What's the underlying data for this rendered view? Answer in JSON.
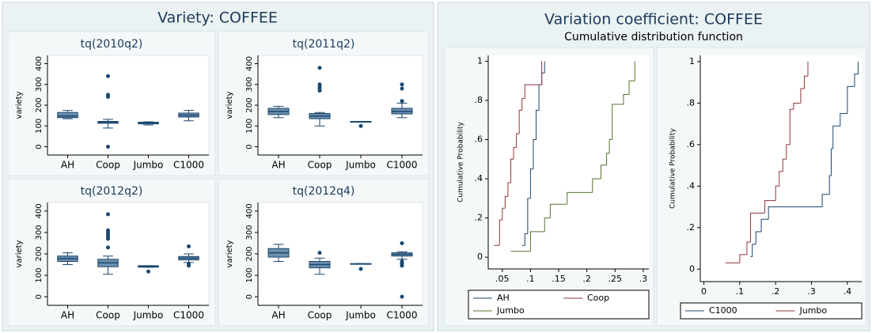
{
  "panels": [
    {
      "title": "Variety: COFFEE"
    },
    {
      "title": "Variation coefficient: COFFEE",
      "subtitle": "Cumulative distribution function"
    }
  ],
  "chart_data": [
    {
      "type": "box",
      "title": "tq(2010q2)",
      "y_label": "variety",
      "categories": [
        "AH",
        "Coop",
        "Jumbo",
        "C1000"
      ],
      "color": "#1a476f",
      "box_color": "#6d8fae",
      "ylim": [
        -40,
        440
      ],
      "yticks": [
        0,
        100,
        200,
        300,
        400
      ],
      "boxes": [
        {
          "whisker_low": 135,
          "q1": 140,
          "median": 148,
          "q3": 165,
          "whisker_high": 175,
          "outliers": []
        },
        {
          "whisker_low": 90,
          "q1": 113,
          "median": 118,
          "q3": 122,
          "whisker_high": 132,
          "outliers": [
            340,
            250,
            240,
            0
          ]
        },
        {
          "whisker_low": 105,
          "q1": 110,
          "median": 115,
          "q3": 118,
          "whisker_high": 120,
          "outliers": []
        },
        {
          "whisker_low": 125,
          "q1": 143,
          "median": 152,
          "q3": 162,
          "whisker_high": 175,
          "outliers": []
        }
      ]
    },
    {
      "type": "box",
      "title": "tq(2011q2)",
      "y_label": "variety",
      "categories": [
        "AH",
        "Coop",
        "Jumbo",
        "C1000"
      ],
      "color": "#1a476f",
      "box_color": "#6d8fae",
      "ylim": [
        -40,
        440
      ],
      "yticks": [
        0,
        100,
        200,
        300,
        400
      ],
      "boxes": [
        {
          "whisker_low": 140,
          "q1": 155,
          "median": 170,
          "q3": 185,
          "whisker_high": 195,
          "outliers": []
        },
        {
          "whisker_low": 100,
          "q1": 135,
          "median": 148,
          "q3": 160,
          "whisker_high": 165,
          "outliers": [
            380,
            300,
            290,
            280,
            270
          ]
        },
        {
          "whisker_low": 120,
          "q1": 120,
          "median": 121,
          "q3": 122,
          "whisker_high": 122,
          "outliers": [
            100
          ]
        },
        {
          "whisker_low": 140,
          "q1": 158,
          "median": 170,
          "q3": 185,
          "whisker_high": 210,
          "outliers": [
            300,
            280,
            220
          ]
        }
      ]
    },
    {
      "type": "box",
      "title": "tq(2012q2)",
      "y_label": "variety",
      "categories": [
        "AH",
        "Coop",
        "Jumbo",
        "C1000"
      ],
      "color": "#1a476f",
      "box_color": "#6d8fae",
      "ylim": [
        -40,
        440
      ],
      "yticks": [
        0,
        100,
        200,
        300,
        400
      ],
      "boxes": [
        {
          "whisker_low": 150,
          "q1": 165,
          "median": 178,
          "q3": 190,
          "whisker_high": 205,
          "outliers": []
        },
        {
          "whisker_low": 105,
          "q1": 140,
          "median": 158,
          "q3": 175,
          "whisker_high": 190,
          "outliers": [
            385,
            310,
            300,
            290,
            280,
            270,
            230
          ]
        },
        {
          "whisker_low": 138,
          "q1": 138,
          "median": 142,
          "q3": 145,
          "whisker_high": 145,
          "outliers": [
            118
          ]
        },
        {
          "whisker_low": 160,
          "q1": 172,
          "median": 180,
          "q3": 188,
          "whisker_high": 200,
          "outliers": [
            235,
            155,
            145
          ]
        }
      ]
    },
    {
      "type": "box",
      "title": "tq(2012q4)",
      "y_label": "variety",
      "categories": [
        "AH",
        "Coop",
        "Jumbo",
        "C1000"
      ],
      "color": "#1a476f",
      "box_color": "#6d8fae",
      "ylim": [
        -40,
        440
      ],
      "yticks": [
        0,
        100,
        200,
        300,
        400
      ],
      "boxes": [
        {
          "whisker_low": 165,
          "q1": 185,
          "median": 205,
          "q3": 225,
          "whisker_high": 245,
          "outliers": []
        },
        {
          "whisker_low": 105,
          "q1": 135,
          "median": 150,
          "q3": 165,
          "whisker_high": 180,
          "outliers": [
            205
          ]
        },
        {
          "whisker_low": 152,
          "q1": 152,
          "median": 153,
          "q3": 155,
          "whisker_high": 155,
          "outliers": [
            130
          ]
        },
        {
          "whisker_low": 175,
          "q1": 190,
          "median": 198,
          "q3": 205,
          "whisker_high": 210,
          "outliers": [
            250,
            165,
            155,
            145,
            0
          ]
        }
      ]
    },
    {
      "type": "step",
      "y_label": "Cumulative Probability",
      "xlim": [
        0.025,
        0.31
      ],
      "ylim": [
        -0.06,
        1.03
      ],
      "xticks": [
        {
          "value": 0.05,
          "label": ".05"
        },
        {
          "value": 0.1,
          "label": ".1"
        },
        {
          "value": 0.15,
          "label": ".15"
        },
        {
          "value": 0.2,
          "label": ".2"
        },
        {
          "value": 0.25,
          "label": ".25"
        },
        {
          "value": 0.3,
          "label": ".3"
        }
      ],
      "yticks": [
        0,
        {
          "value": 0.2,
          "label": ".2"
        },
        {
          "value": 0.4,
          "label": ".4"
        },
        {
          "value": 0.6,
          "label": ".6"
        },
        {
          "value": 0.8,
          "label": ".8"
        },
        1
      ],
      "series": [
        {
          "name": "AH",
          "color": "#1a476f",
          "x": [
            0.085,
            0.09,
            0.095,
            0.1,
            0.105,
            0.11,
            0.115,
            0.12,
            0.125
          ],
          "values": [
            0.06,
            0.12,
            0.3,
            0.45,
            0.6,
            0.75,
            0.88,
            0.94,
            1
          ]
        },
        {
          "name": "Coop",
          "color": "#90353b",
          "x": [
            0.035,
            0.045,
            0.05,
            0.055,
            0.06,
            0.065,
            0.07,
            0.075,
            0.08,
            0.085,
            0.09,
            0.12
          ],
          "values": [
            0.06,
            0.19,
            0.25,
            0.31,
            0.38,
            0.5,
            0.56,
            0.63,
            0.75,
            0.81,
            0.88,
            1
          ]
        },
        {
          "name": "Jumbo",
          "color": "#55752f",
          "x": [
            0.065,
            0.1,
            0.125,
            0.135,
            0.165,
            0.21,
            0.225,
            0.235,
            0.24,
            0.245,
            0.265,
            0.275,
            0.285
          ],
          "values": [
            0.03,
            0.13,
            0.2,
            0.27,
            0.33,
            0.4,
            0.47,
            0.53,
            0.6,
            0.78,
            0.83,
            0.9,
            1
          ]
        }
      ]
    },
    {
      "type": "step",
      "y_label": "Cumulative Probability",
      "xlim": [
        -0.01,
        0.44
      ],
      "ylim": [
        -0.06,
        1.03
      ],
      "xticks": [
        0,
        {
          "value": 0.1,
          "label": ".1"
        },
        {
          "value": 0.2,
          "label": ".2"
        },
        {
          "value": 0.3,
          "label": ".3"
        },
        {
          "value": 0.4,
          "label": ".4"
        }
      ],
      "yticks": [
        0,
        {
          "value": 0.2,
          "label": ".2"
        },
        {
          "value": 0.4,
          "label": ".4"
        },
        {
          "value": 0.6,
          "label": ".6"
        },
        {
          "value": 0.8,
          "label": ".8"
        },
        1
      ],
      "series": [
        {
          "name": "C1000",
          "color": "#1a476f",
          "x": [
            0.13,
            0.135,
            0.145,
            0.16,
            0.18,
            0.33,
            0.35,
            0.355,
            0.36,
            0.38,
            0.4,
            0.42,
            0.43
          ],
          "values": [
            0.06,
            0.12,
            0.18,
            0.24,
            0.3,
            0.36,
            0.45,
            0.58,
            0.69,
            0.75,
            0.88,
            0.94,
            1
          ]
        },
        {
          "name": "Jumbo",
          "color": "#90353b",
          "x": [
            0.06,
            0.1,
            0.12,
            0.13,
            0.17,
            0.2,
            0.21,
            0.22,
            0.23,
            0.24,
            0.25,
            0.27,
            0.28,
            0.29
          ],
          "values": [
            0.03,
            0.07,
            0.13,
            0.27,
            0.33,
            0.4,
            0.47,
            0.53,
            0.6,
            0.77,
            0.8,
            0.87,
            0.93,
            1
          ]
        }
      ]
    }
  ]
}
